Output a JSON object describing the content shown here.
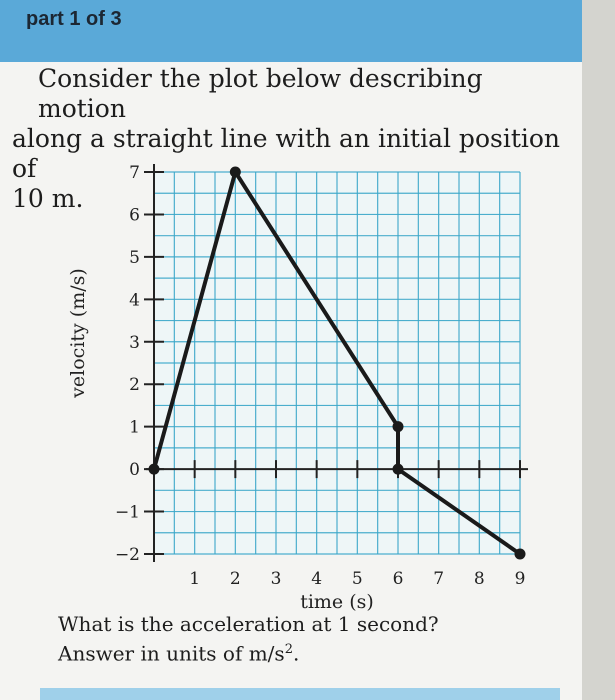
{
  "header": {
    "part_label": "part 1 of 3",
    "color": "#5aa9d8"
  },
  "prompt": {
    "line1": "Consider the plot below describing motion",
    "line2": "along a straight line with an initial position of",
    "line3": "10 m."
  },
  "chart_data": {
    "type": "line",
    "xlabel": "time (s)",
    "ylabel": "velocity (m/s)",
    "xlim": [
      0,
      9
    ],
    "ylim": [
      -2,
      7
    ],
    "x_ticks": [
      "1",
      "2",
      "3",
      "4",
      "5",
      "6",
      "7",
      "8",
      "9"
    ],
    "y_ticks": [
      "7",
      "6",
      "5",
      "4",
      "3",
      "2",
      "1",
      "0",
      "−1",
      "−2"
    ],
    "grid": true,
    "grid_color": "#3aa7c9",
    "line_color": "#1a1a1a",
    "series": [
      {
        "x": [
          0,
          2,
          6,
          6,
          9
        ],
        "y": [
          0,
          7,
          1,
          0,
          -2
        ]
      }
    ]
  },
  "question": {
    "line1": "What is the acceleration at 1 second?",
    "line2_prefix": "Answer in units of ",
    "unit_base": "m/s",
    "unit_exp": "2",
    "line2_suffix": "."
  }
}
